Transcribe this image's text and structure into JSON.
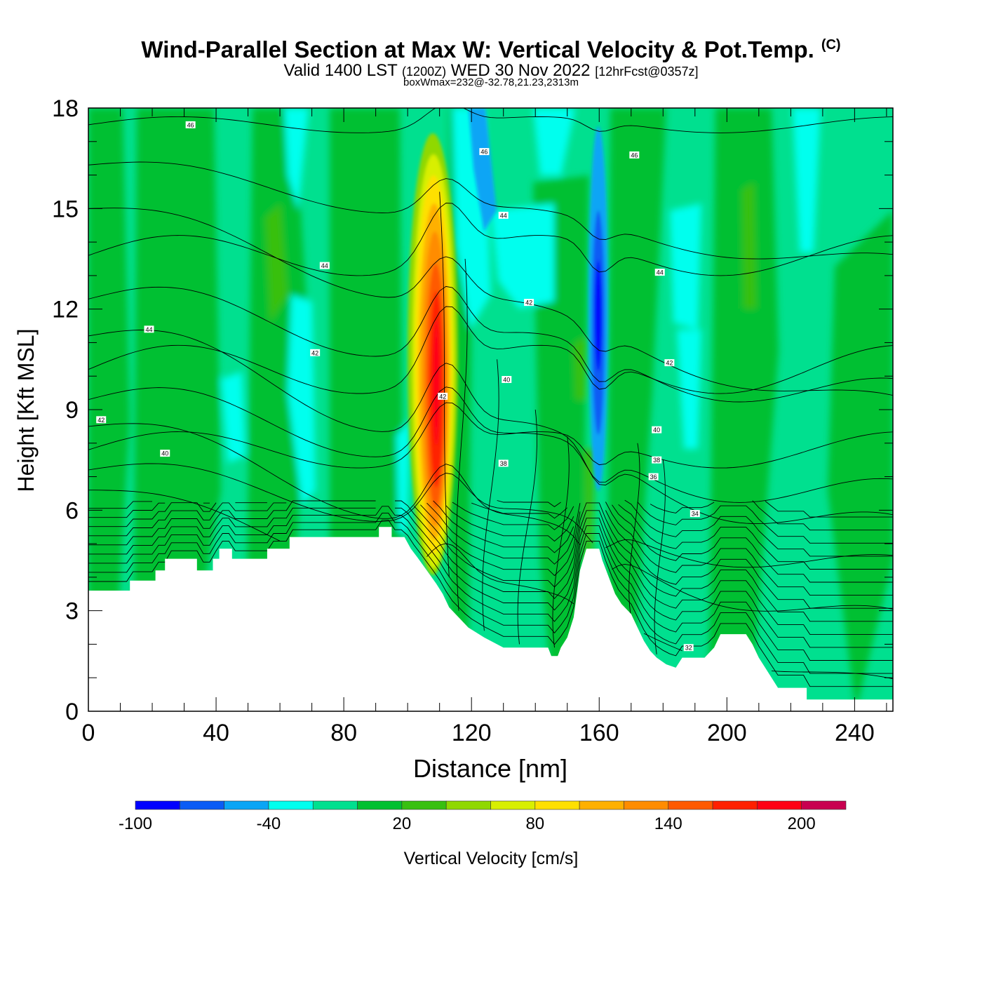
{
  "header": {
    "title": "Wind-Parallel Section at Max W: Vertical Velocity & Pot.Temp.",
    "copyright": "(C)",
    "valid_prefix": "Valid 1400 LST",
    "valid_utc": "(1200Z)",
    "valid_date": "WED 30 Nov 2022",
    "forecast": "[12hrFcst@0357z]",
    "box_wmax": "boxWmax=232@-32.78,21.23,2313m"
  },
  "chart_data": {
    "type": "heatmap",
    "title": "Wind-Parallel Section at Max W: Vertical Velocity & Pot.Temp.",
    "xlabel": "Distance [nm]",
    "ylabel": "Height [Kft MSL]",
    "xlim": [
      0,
      252
    ],
    "ylim": [
      0,
      18
    ],
    "x_ticks": [
      0,
      40,
      80,
      120,
      160,
      200,
      240
    ],
    "y_ticks": [
      0,
      3,
      6,
      9,
      12,
      15,
      18
    ],
    "colorbar": {
      "label": "Vertical Velocity [cm/s]",
      "levels": [
        -100,
        -80,
        -60,
        -40,
        -20,
        0,
        20,
        40,
        60,
        80,
        100,
        120,
        140,
        160,
        180,
        200,
        220
      ],
      "tick_labels": [
        "-100",
        "-40",
        "20",
        "80",
        "140",
        "200"
      ],
      "tick_values": [
        -100,
        -40,
        20,
        80,
        140,
        200
      ],
      "colors": [
        "#0000ff",
        "#0a5cf5",
        "#0aa5f5",
        "#00ffee",
        "#00e08f",
        "#00c030",
        "#38c010",
        "#90d800",
        "#d8ef00",
        "#ffe000",
        "#ffb000",
        "#ff8c00",
        "#ff5a00",
        "#ff2000",
        "#ff0014",
        "#c80050"
      ]
    },
    "terrain_kft": [
      [
        0,
        3.6
      ],
      [
        13,
        3.6
      ],
      [
        13,
        3.9
      ],
      [
        21,
        3.9
      ],
      [
        21,
        4.2
      ],
      [
        24,
        4.2
      ],
      [
        24,
        4.55
      ],
      [
        34,
        4.55
      ],
      [
        34,
        4.2
      ],
      [
        39,
        4.2
      ],
      [
        39,
        4.55
      ],
      [
        41,
        4.55
      ],
      [
        41,
        4.85
      ],
      [
        45,
        4.85
      ],
      [
        45,
        4.55
      ],
      [
        56,
        4.55
      ],
      [
        56,
        4.85
      ],
      [
        63,
        4.85
      ],
      [
        63,
        5.2
      ],
      [
        91,
        5.2
      ],
      [
        91,
        5.5
      ],
      [
        95,
        5.5
      ],
      [
        95,
        5.2
      ],
      [
        99,
        5.2
      ],
      [
        101,
        4.85
      ],
      [
        103,
        4.6
      ],
      [
        106,
        4.2
      ],
      [
        109,
        3.8
      ],
      [
        111,
        3.5
      ],
      [
        113,
        3.1
      ],
      [
        116,
        2.8
      ],
      [
        119,
        2.5
      ],
      [
        124,
        2.2
      ],
      [
        130,
        1.9
      ],
      [
        144,
        1.9
      ],
      [
        145,
        1.65
      ],
      [
        147,
        1.65
      ],
      [
        148,
        1.9
      ],
      [
        150,
        2.2
      ],
      [
        152,
        2.8
      ],
      [
        153,
        3.5
      ],
      [
        154,
        4.2
      ],
      [
        156,
        4.85
      ],
      [
        160,
        4.85
      ],
      [
        161,
        4.5
      ],
      [
        163,
        4.0
      ],
      [
        165,
        3.5
      ],
      [
        167,
        3.2
      ],
      [
        170,
        2.9
      ],
      [
        172,
        2.5
      ],
      [
        174,
        2.1
      ],
      [
        176,
        1.8
      ],
      [
        178,
        1.6
      ],
      [
        181,
        1.4
      ],
      [
        184,
        1.3
      ],
      [
        186,
        1.6
      ],
      [
        193,
        1.6
      ],
      [
        196,
        1.9
      ],
      [
        198,
        2.3
      ],
      [
        206,
        2.3
      ],
      [
        208,
        2.0
      ],
      [
        210,
        1.6
      ],
      [
        212,
        1.3
      ],
      [
        214,
        1.0
      ],
      [
        216,
        0.7
      ],
      [
        225,
        0.7
      ],
      [
        225,
        0.35
      ],
      [
        252,
        0.35
      ],
      [
        252,
        0
      ],
      [
        0,
        0
      ]
    ],
    "theta_contour_labels": [
      {
        "x": 32,
        "y": 17.5,
        "label": "46"
      },
      {
        "x": 124,
        "y": 16.7,
        "label": "46"
      },
      {
        "x": 171,
        "y": 16.6,
        "label": "46"
      },
      {
        "x": 130,
        "y": 14.8,
        "label": "44"
      },
      {
        "x": 74,
        "y": 13.3,
        "label": "44"
      },
      {
        "x": 179,
        "y": 13.1,
        "label": "44"
      },
      {
        "x": 19,
        "y": 11.4,
        "label": "44"
      },
      {
        "x": 138,
        "y": 12.2,
        "label": "42"
      },
      {
        "x": 71,
        "y": 10.7,
        "label": "42"
      },
      {
        "x": 182,
        "y": 10.4,
        "label": "42"
      },
      {
        "x": 131,
        "y": 9.9,
        "label": "40"
      },
      {
        "x": 111,
        "y": 9.4,
        "label": "42"
      },
      {
        "x": 4,
        "y": 8.7,
        "label": "42"
      },
      {
        "x": 178,
        "y": 8.4,
        "label": "40"
      },
      {
        "x": 24,
        "y": 7.7,
        "label": "40"
      },
      {
        "x": 130,
        "y": 7.4,
        "label": "38"
      },
      {
        "x": 178,
        "y": 7.5,
        "label": "38"
      },
      {
        "x": 177,
        "y": 7.0,
        "label": "36"
      },
      {
        "x": 190,
        "y": 5.9,
        "label": "34"
      },
      {
        "x": 188,
        "y": 1.9,
        "label": "32"
      }
    ]
  }
}
